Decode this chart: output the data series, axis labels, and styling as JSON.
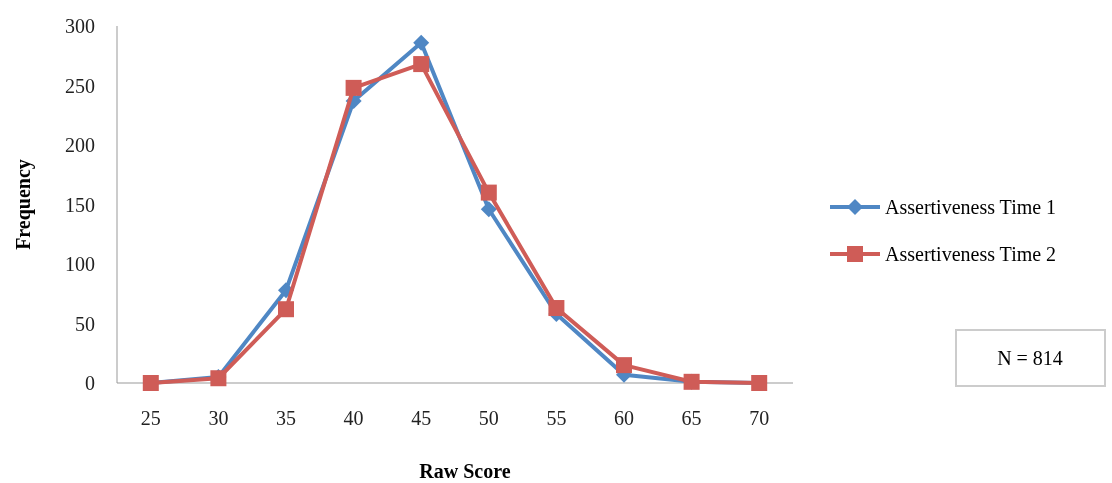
{
  "chart_data": {
    "type": "line",
    "xlabel": "Raw Score",
    "ylabel": "Frequency",
    "categories": [
      "25",
      "30",
      "35",
      "40",
      "45",
      "50",
      "55",
      "60",
      "65",
      "70"
    ],
    "series": [
      {
        "name": "Assertiveness Time 1",
        "color": "#4f87c4",
        "marker": "diamond",
        "values": [
          0,
          5,
          78,
          237,
          286,
          146,
          58,
          7,
          1,
          0
        ]
      },
      {
        "name": "Assertiveness Time 2",
        "color": "#cf5c57",
        "marker": "square",
        "values": [
          0,
          4,
          62,
          248,
          268,
          160,
          63,
          15,
          1,
          0
        ]
      }
    ],
    "ylim": [
      0,
      300
    ],
    "yticks": [
      0,
      50,
      100,
      150,
      200,
      250,
      300
    ],
    "grid": false,
    "legend": "right",
    "line_style": "solid",
    "annotations": [
      "N = 814"
    ]
  }
}
